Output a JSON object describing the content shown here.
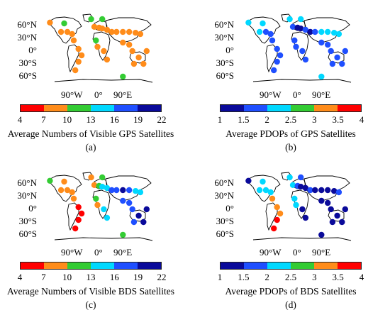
{
  "lat_labels": [
    "60°N",
    "30°N",
    "0°",
    "30°S",
    "60°S"
  ],
  "lon_labels": [
    "90°W",
    "0°",
    "90°E"
  ],
  "palette_gps_count": [
    "#ff0000",
    "#ff8c1a",
    "#33cc33",
    "#00d8ff",
    "#1f4fff",
    "#0a0a9a"
  ],
  "palette_pdop": [
    "#0a0a9a",
    "#1f4fff",
    "#00d8ff",
    "#33cc33",
    "#ff8c1a",
    "#ff0000"
  ],
  "colors": {
    "land_stroke": "#000000"
  },
  "panels": [
    {
      "id": "a",
      "caption": "Average Numbers of Visible GPS Satellites",
      "label": "(a)",
      "ticks": [
        "4",
        "7",
        "10",
        "13",
        "16",
        "19",
        "22"
      ],
      "palette": "count"
    },
    {
      "id": "b",
      "caption": "Average PDOPs of GPS Satellites",
      "label": "(b)",
      "ticks": [
        "1",
        "1.5",
        "2",
        "2.5",
        "3",
        "3.5",
        "4"
      ],
      "palette": "pdop"
    },
    {
      "id": "c",
      "caption": "Average Numbers of Visible BDS Satellites",
      "label": "(c)",
      "ticks": [
        "4",
        "7",
        "10",
        "13",
        "16",
        "19",
        "22"
      ],
      "palette": "count"
    },
    {
      "id": "d",
      "caption": "Average PDOPs of BDS Satellites",
      "label": "(d)",
      "ticks": [
        "1",
        "1.5",
        "2",
        "2.5",
        "3",
        "3.5",
        "4"
      ],
      "palette": "pdop"
    }
  ],
  "stations": {
    "a": [
      [
        "#ff8c1a",
        -150,
        62
      ],
      [
        "#33cc33",
        -105,
        60
      ],
      [
        "#ff8c1a",
        -115,
        40
      ],
      [
        "#ff8c1a",
        -95,
        40
      ],
      [
        "#ff8c1a",
        -80,
        35
      ],
      [
        "#ff8c1a",
        -75,
        20
      ],
      [
        "#ff8c1a",
        -60,
        0
      ],
      [
        "#ff8c1a",
        -50,
        -15
      ],
      [
        "#ff8c1a",
        -60,
        -30
      ],
      [
        "#ff8c1a",
        -70,
        -50
      ],
      [
        "#33cc33",
        -20,
        70
      ],
      [
        "#ff8c1a",
        -10,
        52
      ],
      [
        "#ff8c1a",
        5,
        50
      ],
      [
        "#ff8c1a",
        15,
        48
      ],
      [
        "#ff8c1a",
        30,
        45
      ],
      [
        "#ff8c1a",
        45,
        40
      ],
      [
        "#ff8c1a",
        60,
        40
      ],
      [
        "#ff8c1a",
        80,
        40
      ],
      [
        "#ff8c1a",
        100,
        40
      ],
      [
        "#ff8c1a",
        120,
        38
      ],
      [
        "#ff8c1a",
        135,
        35
      ],
      [
        "#ff8c1a",
        0,
        5
      ],
      [
        "#ff8c1a",
        20,
        -5
      ],
      [
        "#ff8c1a",
        30,
        -25
      ],
      [
        "#ff8c1a",
        80,
        15
      ],
      [
        "#ff8c1a",
        100,
        10
      ],
      [
        "#ff8c1a",
        110,
        -5
      ],
      [
        "#ff8c1a",
        130,
        -20
      ],
      [
        "#ff8c1a",
        145,
        -35
      ],
      [
        "#33cc33",
        -5,
        20
      ],
      [
        "#33cc33",
        15,
        70
      ],
      [
        "#33cc33",
        80,
        -65
      ],
      [
        "#ff8c1a",
        115,
        -35
      ],
      [
        "#ff8c1a",
        155,
        -5
      ]
    ],
    "b": [
      [
        "#00d8ff",
        -150,
        62
      ],
      [
        "#00d8ff",
        -105,
        60
      ],
      [
        "#00d8ff",
        -115,
        40
      ],
      [
        "#1f4fff",
        -95,
        40
      ],
      [
        "#1f4fff",
        -80,
        35
      ],
      [
        "#1f4fff",
        -75,
        20
      ],
      [
        "#1f4fff",
        -60,
        0
      ],
      [
        "#1f4fff",
        -50,
        -15
      ],
      [
        "#1f4fff",
        -60,
        -30
      ],
      [
        "#1f4fff",
        -70,
        -50
      ],
      [
        "#00d8ff",
        -20,
        70
      ],
      [
        "#1f4fff",
        -10,
        52
      ],
      [
        "#0a0a9a",
        5,
        50
      ],
      [
        "#0a0a9a",
        15,
        48
      ],
      [
        "#1f4fff",
        30,
        45
      ],
      [
        "#0a0a9a",
        45,
        40
      ],
      [
        "#1f4fff",
        60,
        40
      ],
      [
        "#00d8ff",
        80,
        40
      ],
      [
        "#00d8ff",
        100,
        40
      ],
      [
        "#00d8ff",
        120,
        38
      ],
      [
        "#00d8ff",
        135,
        35
      ],
      [
        "#1f4fff",
        0,
        5
      ],
      [
        "#1f4fff",
        20,
        -5
      ],
      [
        "#1f4fff",
        30,
        -25
      ],
      [
        "#1f4fff",
        80,
        15
      ],
      [
        "#1f4fff",
        100,
        10
      ],
      [
        "#1f4fff",
        110,
        -5
      ],
      [
        "#1f4fff",
        130,
        -20
      ],
      [
        "#1f4fff",
        145,
        -35
      ],
      [
        "#1f4fff",
        -5,
        20
      ],
      [
        "#00d8ff",
        15,
        70
      ],
      [
        "#00d8ff",
        80,
        -65
      ],
      [
        "#1f4fff",
        115,
        -35
      ],
      [
        "#1f4fff",
        155,
        -5
      ]
    ],
    "c": [
      [
        "#33cc33",
        -150,
        62
      ],
      [
        "#ff8c1a",
        -105,
        60
      ],
      [
        "#ff8c1a",
        -115,
        40
      ],
      [
        "#ff8c1a",
        -95,
        40
      ],
      [
        "#ff8c1a",
        -80,
        35
      ],
      [
        "#ff8c1a",
        -75,
        20
      ],
      [
        "#ff0000",
        -60,
        0
      ],
      [
        "#ff0000",
        -50,
        -15
      ],
      [
        "#ff0000",
        -60,
        -30
      ],
      [
        "#ff0000",
        -70,
        -50
      ],
      [
        "#ff8c1a",
        -20,
        70
      ],
      [
        "#ff8c1a",
        -10,
        52
      ],
      [
        "#33cc33",
        5,
        50
      ],
      [
        "#00d8ff",
        15,
        48
      ],
      [
        "#00d8ff",
        30,
        45
      ],
      [
        "#1f4fff",
        45,
        40
      ],
      [
        "#1f4fff",
        60,
        40
      ],
      [
        "#0a0a9a",
        80,
        40
      ],
      [
        "#1f4fff",
        100,
        40
      ],
      [
        "#00d8ff",
        120,
        38
      ],
      [
        "#00d8ff",
        135,
        35
      ],
      [
        "#ff8c1a",
        0,
        5
      ],
      [
        "#00d8ff",
        20,
        -5
      ],
      [
        "#00d8ff",
        30,
        -25
      ],
      [
        "#1f4fff",
        80,
        15
      ],
      [
        "#1f4fff",
        100,
        10
      ],
      [
        "#1f4fff",
        110,
        -5
      ],
      [
        "#0a0a9a",
        130,
        -20
      ],
      [
        "#0a0a9a",
        145,
        -35
      ],
      [
        "#33cc33",
        -5,
        20
      ],
      [
        "#33cc33",
        15,
        70
      ],
      [
        "#33cc33",
        80,
        -65
      ],
      [
        "#1f4fff",
        115,
        -35
      ],
      [
        "#0a0a9a",
        155,
        -5
      ]
    ],
    "d": [
      [
        "#0a0a9a",
        -150,
        62
      ],
      [
        "#00d8ff",
        -105,
        60
      ],
      [
        "#00d8ff",
        -115,
        40
      ],
      [
        "#00d8ff",
        -95,
        40
      ],
      [
        "#00d8ff",
        -80,
        35
      ],
      [
        "#ff8c1a",
        -75,
        20
      ],
      [
        "#ff8c1a",
        -60,
        0
      ],
      [
        "#ff8c1a",
        -50,
        -15
      ],
      [
        "#ff0000",
        -60,
        -30
      ],
      [
        "#ff0000",
        -70,
        -50
      ],
      [
        "#00d8ff",
        -20,
        70
      ],
      [
        "#00d8ff",
        -10,
        52
      ],
      [
        "#1f4fff",
        5,
        50
      ],
      [
        "#0a0a9a",
        15,
        48
      ],
      [
        "#0a0a9a",
        30,
        45
      ],
      [
        "#1f4fff",
        45,
        40
      ],
      [
        "#0a0a9a",
        60,
        40
      ],
      [
        "#0a0a9a",
        80,
        40
      ],
      [
        "#0a0a9a",
        100,
        40
      ],
      [
        "#0a0a9a",
        120,
        38
      ],
      [
        "#1f4fff",
        135,
        35
      ],
      [
        "#00d8ff",
        0,
        5
      ],
      [
        "#0a0a9a",
        20,
        -5
      ],
      [
        "#0a0a9a",
        30,
        -25
      ],
      [
        "#0a0a9a",
        80,
        15
      ],
      [
        "#0a0a9a",
        100,
        10
      ],
      [
        "#0a0a9a",
        110,
        -5
      ],
      [
        "#0a0a9a",
        130,
        -20
      ],
      [
        "#0a0a9a",
        145,
        -35
      ],
      [
        "#00d8ff",
        -5,
        20
      ],
      [
        "#1f4fff",
        15,
        70
      ],
      [
        "#0a0a9a",
        80,
        -65
      ],
      [
        "#0a0a9a",
        115,
        -35
      ],
      [
        "#0a0a9a",
        155,
        -5
      ]
    ]
  }
}
